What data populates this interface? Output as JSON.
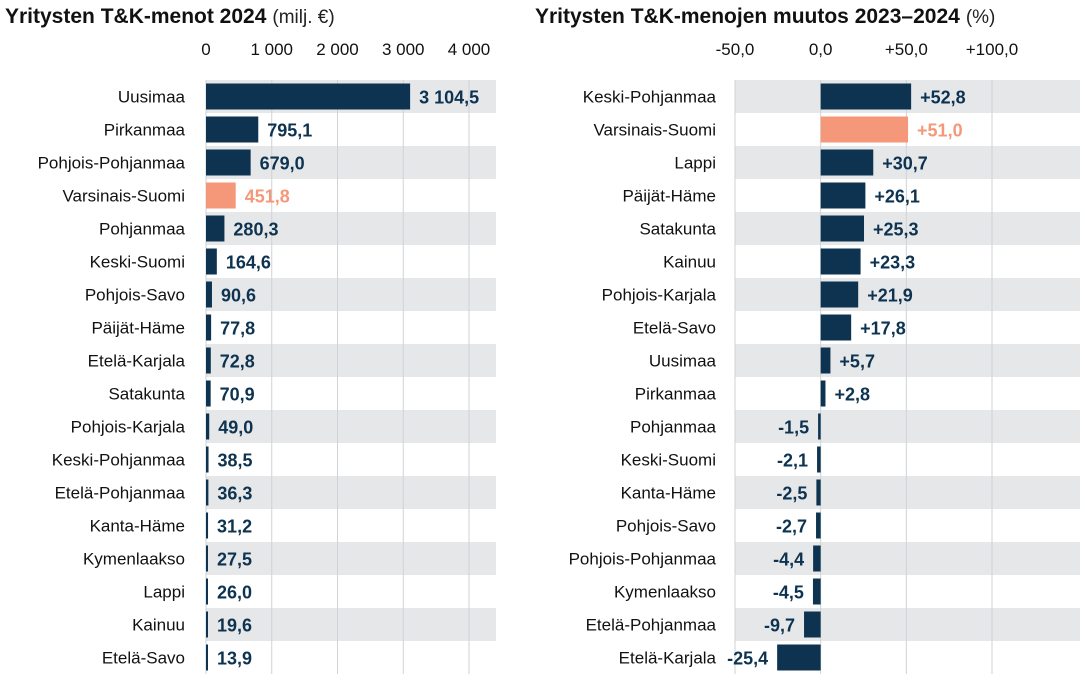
{
  "colors": {
    "bar": "#0d3350",
    "highlight": "#f59779",
    "stripe": "#e6e7e9",
    "grid": "#cfd2d6",
    "text": "#111111"
  },
  "chart_data": [
    {
      "type": "bar",
      "orientation": "horizontal",
      "title": "Yritysten T&K-menot 2024",
      "unit": "(milj. €)",
      "xlim": [
        0,
        4000
      ],
      "ticks": [
        0,
        1000,
        2000,
        3000,
        4000
      ],
      "tick_labels": [
        "0",
        "1 000",
        "2 000",
        "3 000",
        "4 000"
      ],
      "highlight": "Varsinais-Suomi",
      "categories": [
        "Uusimaa",
        "Pirkanmaa",
        "Pohjois-Pohjanmaa",
        "Varsinais-Suomi",
        "Pohjanmaa",
        "Keski-Suomi",
        "Pohjois-Savo",
        "Päijät-Häme",
        "Etelä-Karjala",
        "Satakunta",
        "Pohjois-Karjala",
        "Keski-Pohjanmaa",
        "Etelä-Pohjanmaa",
        "Kanta-Häme",
        "Kymenlaakso",
        "Lappi",
        "Kainuu",
        "Etelä-Savo"
      ],
      "values": [
        3104.5,
        795.1,
        679.0,
        451.8,
        280.3,
        164.6,
        90.6,
        77.8,
        72.8,
        70.9,
        49.0,
        38.5,
        36.3,
        31.2,
        27.5,
        26.0,
        19.6,
        13.9
      ],
      "value_labels": [
        "3 104,5",
        "795,1",
        "679,0",
        "451,8",
        "280,3",
        "164,6",
        "90,6",
        "77,8",
        "72,8",
        "70,9",
        "49,0",
        "38,5",
        "36,3",
        "31,2",
        "27,5",
        "26,0",
        "19,6",
        "13,9"
      ],
      "grid": true
    },
    {
      "type": "bar",
      "orientation": "horizontal",
      "title": "Yritysten T&K-menojen muutos 2023–2024",
      "unit": "(%)",
      "xlim": [
        -50,
        100
      ],
      "ticks": [
        -50,
        0,
        50,
        100
      ],
      "tick_labels": [
        "-50,0",
        "0,0",
        "+50,0",
        "+100,0"
      ],
      "highlight": "Varsinais-Suomi",
      "categories": [
        "Keski-Pohjanmaa",
        "Varsinais-Suomi",
        "Lappi",
        "Päijät-Häme",
        "Satakunta",
        "Kainuu",
        "Pohjois-Karjala",
        "Etelä-Savo",
        "Uusimaa",
        "Pirkanmaa",
        "Pohjanmaa",
        "Keski-Suomi",
        "Kanta-Häme",
        "Pohjois-Savo",
        "Pohjois-Pohjanmaa",
        "Kymenlaakso",
        "Etelä-Pohjanmaa",
        "Etelä-Karjala"
      ],
      "values": [
        52.8,
        51.0,
        30.7,
        26.1,
        25.3,
        23.3,
        21.9,
        17.8,
        5.7,
        2.8,
        -1.5,
        -2.1,
        -2.5,
        -2.7,
        -4.4,
        -4.5,
        -9.7,
        -25.4
      ],
      "value_labels": [
        "+52,8",
        "+51,0",
        "+30,7",
        "+26,1",
        "+25,3",
        "+23,3",
        "+21,9",
        "+17,8",
        "+5,7",
        "+2,8",
        "-1,5",
        "-2,1",
        "-2,5",
        "-2,7",
        "-4,4",
        "-4,5",
        "-9,7",
        "-25,4"
      ],
      "grid": true
    }
  ]
}
